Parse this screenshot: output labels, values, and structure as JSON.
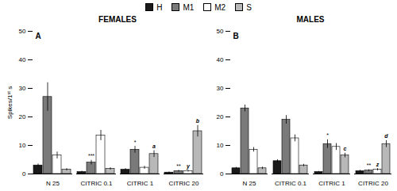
{
  "chart_data": [
    {
      "type": "bar",
      "title": "FEMALES",
      "label": "A",
      "categories": [
        "N 25",
        "CITRIC 0.1",
        "CITRIC 1",
        "CITRIC 20"
      ],
      "ylabel": "Spikes/1ˢᵗ s",
      "ylim": [
        0,
        50
      ],
      "yticks": [
        0,
        10,
        20,
        30,
        40,
        50
      ],
      "legend": "top",
      "series": [
        {
          "name": "H",
          "color": "#1a1a1a",
          "values": [
            3.0,
            0.7,
            1.5,
            0.5
          ],
          "errors": [
            0.5,
            0.3,
            0.4,
            0.2
          ]
        },
        {
          "name": "M1",
          "color": "#7a7a7a",
          "values": [
            27.0,
            4.0,
            8.5,
            1.0
          ],
          "errors": [
            5.0,
            0.8,
            1.2,
            0.3
          ]
        },
        {
          "name": "M2",
          "color": "#ffffff",
          "values": [
            6.5,
            13.5,
            2.2,
            1.0
          ],
          "errors": [
            1.2,
            1.8,
            0.5,
            0.3
          ]
        },
        {
          "name": "S",
          "color": "#b8b8b8",
          "values": [
            1.5,
            1.8,
            7.0,
            15.0
          ],
          "errors": [
            0.4,
            0.4,
            1.2,
            2.0
          ]
        }
      ],
      "annotations": [
        {
          "text": "***",
          "category": "CITRIC 0.1",
          "series": "M1"
        },
        {
          "text": "*",
          "category": "CITRIC 1",
          "series": "M1"
        },
        {
          "text": "**",
          "category": "CITRIC 20",
          "series": "M1"
        },
        {
          "text": "y",
          "category": "CITRIC 20",
          "series": "M2"
        },
        {
          "text": "a",
          "category": "CITRIC 1",
          "series": "S"
        },
        {
          "text": "b",
          "category": "CITRIC 20",
          "series": "S"
        }
      ]
    },
    {
      "type": "bar",
      "title": "MALES",
      "label": "B",
      "categories": [
        "N 25",
        "CITRIC 0.1",
        "CITRIC 1",
        "CITRIC 20"
      ],
      "ylim": [
        0,
        50
      ],
      "yticks": [
        0,
        10,
        20,
        30,
        40,
        50
      ],
      "series": [
        {
          "name": "H",
          "color": "#1a1a1a",
          "values": [
            2.0,
            4.5,
            0.7,
            1.0
          ],
          "errors": [
            0.3,
            0.5,
            0.2,
            0.3
          ]
        },
        {
          "name": "M1",
          "color": "#7a7a7a",
          "values": [
            23.0,
            19.0,
            10.5,
            1.2
          ],
          "errors": [
            1.2,
            1.5,
            1.5,
            0.3
          ]
        },
        {
          "name": "M2",
          "color": "#ffffff",
          "values": [
            8.5,
            12.5,
            9.5,
            1.5
          ],
          "errors": [
            0.8,
            1.2,
            1.2,
            0.4
          ]
        },
        {
          "name": "S",
          "color": "#b8b8b8",
          "values": [
            2.0,
            3.0,
            6.5,
            10.5
          ],
          "errors": [
            0.4,
            0.4,
            0.8,
            1.2
          ]
        }
      ],
      "annotations": [
        {
          "text": "*",
          "category": "CITRIC 1",
          "series": "M1"
        },
        {
          "text": "**",
          "category": "CITRIC 20",
          "series": "M1"
        },
        {
          "text": "z",
          "category": "CITRIC 20",
          "series": "M2"
        },
        {
          "text": "c",
          "category": "CITRIC 1",
          "series": "S"
        },
        {
          "text": "d",
          "category": "CITRIC 20",
          "series": "S"
        }
      ]
    }
  ]
}
